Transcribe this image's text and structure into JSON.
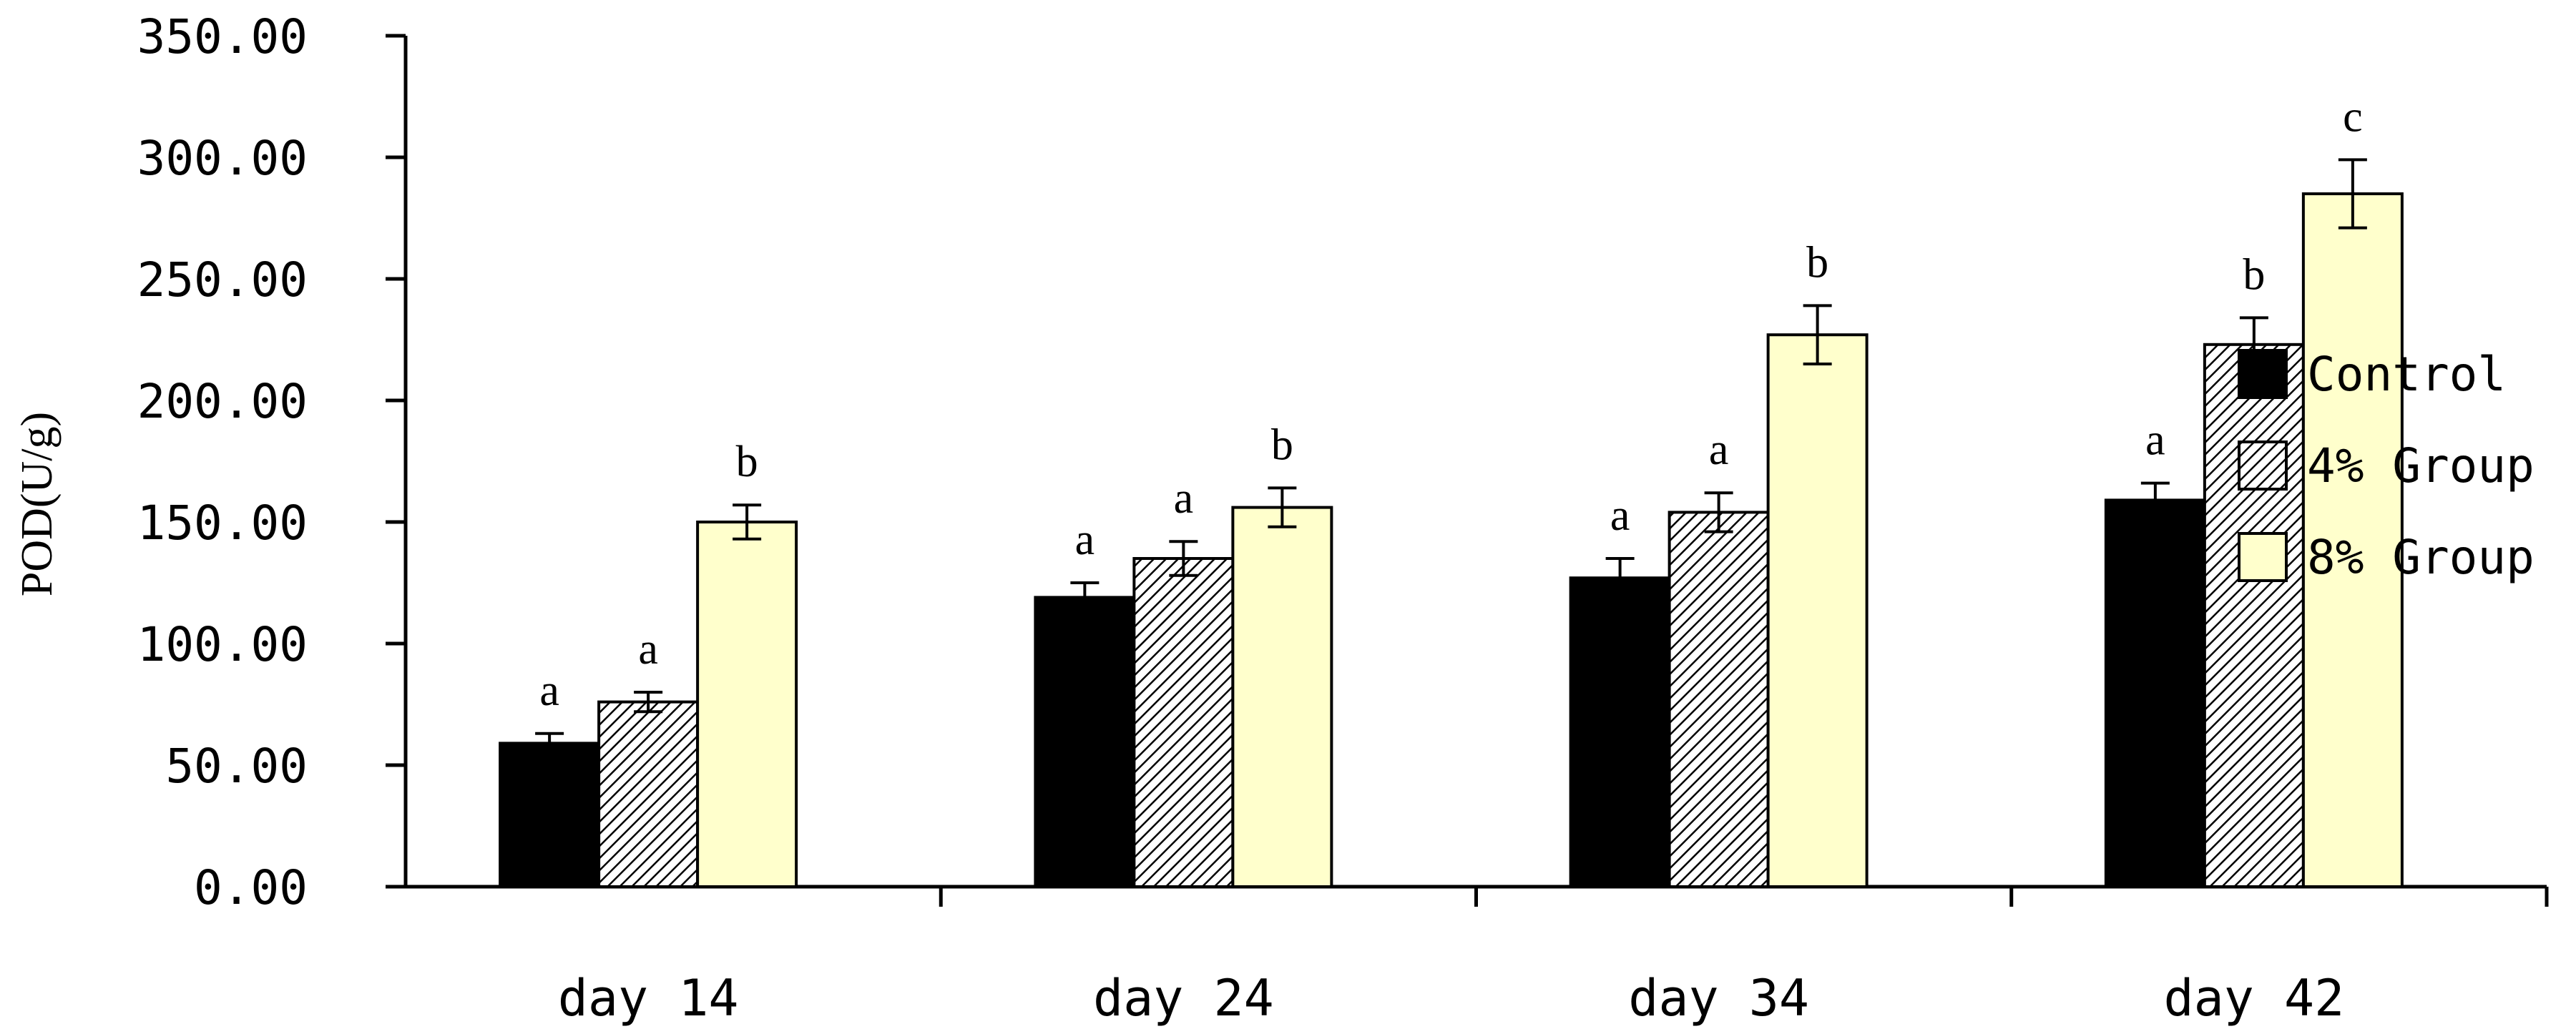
{
  "chart_data": {
    "type": "bar",
    "ylabel": "POD(U/g)",
    "xlabel": "",
    "ylim": [
      0,
      350
    ],
    "ytick_step": 50,
    "ytick_labels": [
      "0.00",
      "50.00",
      "100.00",
      "150.00",
      "200.00",
      "250.00",
      "300.00",
      "350.00"
    ],
    "grid": false,
    "legend_position": "right",
    "categories": [
      "day 14",
      "day 24",
      "day 34",
      "day 42"
    ],
    "series": [
      {
        "name": "Control",
        "fill": "solid",
        "color": "#000000",
        "values": [
          59,
          119,
          127,
          159
        ],
        "errors": [
          4,
          6,
          8,
          7
        ],
        "labels": [
          "a",
          "a",
          "a",
          "a"
        ]
      },
      {
        "name": "4% Group",
        "fill": "hatch",
        "color": "#ffffff",
        "values": [
          76,
          135,
          154,
          223
        ],
        "errors": [
          4,
          7,
          8,
          11
        ],
        "labels": [
          "a",
          "a",
          "a",
          "b"
        ]
      },
      {
        "name": "8% Group",
        "fill": "solid",
        "color": "#ffffcc",
        "values": [
          150,
          156,
          227,
          285
        ],
        "errors": [
          7,
          8,
          12,
          14
        ],
        "labels": [
          "b",
          "b",
          "b",
          "c"
        ]
      }
    ]
  }
}
